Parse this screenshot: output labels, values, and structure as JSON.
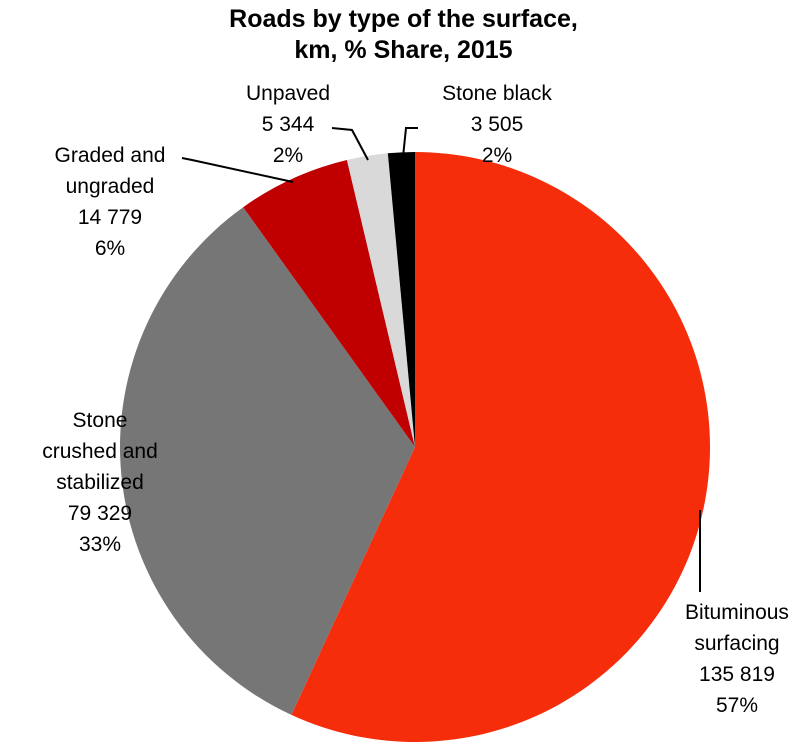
{
  "chart_data": {
    "type": "pie",
    "title": "Roads by type of the surface,\nkm, % Share, 2015",
    "categories": [
      "Bituminous\nsurfacing",
      "Stone\ncrushed and\nstabilized",
      "Graded and\nungraded",
      "Unpaved",
      "Stone black"
    ],
    "values": [
      135819,
      79329,
      14779,
      5344,
      3505
    ],
    "value_labels": [
      "135 819",
      "79 329",
      "14 779",
      "5 344",
      "3 505"
    ],
    "shares": [
      57,
      33,
      6,
      2,
      2
    ],
    "share_labels": [
      "57%",
      "33%",
      "6%",
      "2%",
      "2%"
    ],
    "colors": [
      "#f52d0a",
      "#767676",
      "#c00000",
      "#d9d9d9",
      "#000000"
    ]
  }
}
